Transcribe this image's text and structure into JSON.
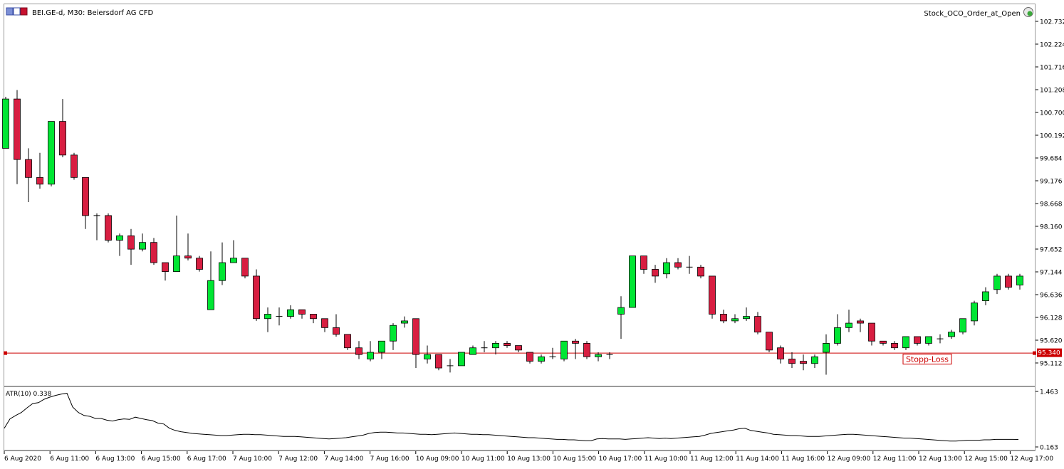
{
  "window": {
    "title": "BEI.GE-d, M30:  Beiersdorf AG CFD",
    "expert": "Stock_OCO_Order_at_Open"
  },
  "price_axis": {
    "labels": [
      "102.732",
      "102.224",
      "101.716",
      "101.208",
      "100.700",
      "100.192",
      "99.684",
      "99.176",
      "98.668",
      "98.160",
      "97.652",
      "97.144",
      "96.636",
      "96.128",
      "95.620",
      "95.112"
    ],
    "current_label": "95.340"
  },
  "atr_axis": {
    "labels": [
      "1.463",
      "0.163"
    ]
  },
  "time_axis": {
    "labels": [
      "6 Aug 2020",
      "6 Aug 11:00",
      "6 Aug 13:00",
      "6 Aug 15:00",
      "6 Aug 17:00",
      "7 Aug 10:00",
      "7 Aug 12:00",
      "7 Aug 14:00",
      "7 Aug 16:00",
      "10 Aug 09:00",
      "10 Aug 11:00",
      "10 Aug 13:00",
      "10 Aug 15:00",
      "10 Aug 17:00",
      "11 Aug 10:00",
      "11 Aug 12:00",
      "11 Aug 14:00",
      "11 Aug 16:00",
      "12 Aug 09:00",
      "12 Aug 11:00",
      "12 Aug 13:00",
      "12 Aug 15:00",
      "12 Aug 17:00"
    ]
  },
  "stop_loss": {
    "label": "Stopp-Loss",
    "price": 95.34
  },
  "atr_indicator": {
    "label": "ATR(10) 0.338"
  },
  "colors": {
    "bull": "#00e633",
    "bear": "#d81e41",
    "stop_line": "#cc0000",
    "atr_line": "#000000"
  },
  "chart_data": {
    "type": "candlestick",
    "symbol": "BEI.GE-d",
    "timeframe": "M30",
    "ylim": [
      94.9,
      103.0
    ],
    "candles": [
      {
        "o": 99.9,
        "h": 101.05,
        "l": 99.9,
        "c": 101.0
      },
      {
        "o": 101.0,
        "h": 101.2,
        "l": 99.1,
        "c": 99.65
      },
      {
        "o": 99.65,
        "h": 99.9,
        "l": 98.7,
        "c": 99.25
      },
      {
        "o": 99.25,
        "h": 99.8,
        "l": 99.0,
        "c": 99.1
      },
      {
        "o": 99.1,
        "h": 100.5,
        "l": 99.05,
        "c": 100.5
      },
      {
        "o": 100.5,
        "h": 101.0,
        "l": 99.7,
        "c": 99.75
      },
      {
        "o": 99.75,
        "h": 99.8,
        "l": 99.2,
        "c": 99.25
      },
      {
        "o": 99.25,
        "h": 99.25,
        "l": 98.1,
        "c": 98.4
      },
      {
        "o": 98.4,
        "h": 98.45,
        "l": 97.85,
        "c": 98.4
      },
      {
        "o": 98.4,
        "h": 98.45,
        "l": 97.8,
        "c": 97.85
      },
      {
        "o": 97.85,
        "h": 98.0,
        "l": 97.5,
        "c": 97.95
      },
      {
        "o": 97.95,
        "h": 98.1,
        "l": 97.3,
        "c": 97.65
      },
      {
        "o": 97.65,
        "h": 98.0,
        "l": 97.6,
        "c": 97.8
      },
      {
        "o": 97.8,
        "h": 97.9,
        "l": 97.3,
        "c": 97.35
      },
      {
        "o": 97.35,
        "h": 97.35,
        "l": 96.95,
        "c": 97.15
      },
      {
        "o": 97.15,
        "h": 98.4,
        "l": 97.15,
        "c": 97.5
      },
      {
        "o": 97.5,
        "h": 98.0,
        "l": 97.4,
        "c": 97.45
      },
      {
        "o": 97.45,
        "h": 97.5,
        "l": 97.15,
        "c": 97.2
      },
      {
        "o": 96.3,
        "h": 97.6,
        "l": 96.3,
        "c": 96.95
      },
      {
        "o": 96.95,
        "h": 97.8,
        "l": 96.85,
        "c": 97.35
      },
      {
        "o": 97.35,
        "h": 97.85,
        "l": 97.35,
        "c": 97.45
      },
      {
        "o": 97.45,
        "h": 97.45,
        "l": 97.0,
        "c": 97.05
      },
      {
        "o": 97.05,
        "h": 97.2,
        "l": 96.05,
        "c": 96.1
      },
      {
        "o": 96.1,
        "h": 96.35,
        "l": 95.8,
        "c": 96.2
      },
      {
        "o": 96.15,
        "h": 96.35,
        "l": 95.95,
        "c": 96.15
      },
      {
        "o": 96.15,
        "h": 96.4,
        "l": 96.1,
        "c": 96.3
      },
      {
        "o": 96.3,
        "h": 96.3,
        "l": 96.1,
        "c": 96.2
      },
      {
        "o": 96.2,
        "h": 96.2,
        "l": 96.0,
        "c": 96.1
      },
      {
        "o": 96.1,
        "h": 96.1,
        "l": 95.8,
        "c": 95.9
      },
      {
        "o": 95.9,
        "h": 96.2,
        "l": 95.7,
        "c": 95.75
      },
      {
        "o": 95.75,
        "h": 95.75,
        "l": 95.4,
        "c": 95.45
      },
      {
        "o": 95.45,
        "h": 95.6,
        "l": 95.2,
        "c": 95.3
      },
      {
        "o": 95.2,
        "h": 95.6,
        "l": 95.15,
        "c": 95.35
      },
      {
        "o": 95.35,
        "h": 95.6,
        "l": 95.2,
        "c": 95.6
      },
      {
        "o": 95.6,
        "h": 96.0,
        "l": 95.4,
        "c": 95.95
      },
      {
        "o": 96.0,
        "h": 96.15,
        "l": 95.9,
        "c": 96.05
      },
      {
        "o": 96.1,
        "h": 96.1,
        "l": 95.0,
        "c": 95.3
      },
      {
        "o": 95.2,
        "h": 95.5,
        "l": 95.1,
        "c": 95.3
      },
      {
        "o": 95.3,
        "h": 95.3,
        "l": 94.95,
        "c": 95.0
      },
      {
        "o": 95.05,
        "h": 95.2,
        "l": 94.9,
        "c": 95.05
      },
      {
        "o": 95.05,
        "h": 95.35,
        "l": 95.05,
        "c": 95.35
      },
      {
        "o": 95.3,
        "h": 95.5,
        "l": 95.3,
        "c": 95.45
      },
      {
        "o": 95.45,
        "h": 95.6,
        "l": 95.35,
        "c": 95.45
      },
      {
        "o": 95.45,
        "h": 95.6,
        "l": 95.3,
        "c": 95.55
      },
      {
        "o": 95.55,
        "h": 95.6,
        "l": 95.45,
        "c": 95.5
      },
      {
        "o": 95.5,
        "h": 95.5,
        "l": 95.35,
        "c": 95.4
      },
      {
        "o": 95.35,
        "h": 95.35,
        "l": 95.1,
        "c": 95.15
      },
      {
        "o": 95.15,
        "h": 95.3,
        "l": 95.1,
        "c": 95.25
      },
      {
        "o": 95.25,
        "h": 95.45,
        "l": 95.2,
        "c": 95.25
      },
      {
        "o": 95.2,
        "h": 95.6,
        "l": 95.15,
        "c": 95.6
      },
      {
        "o": 95.6,
        "h": 95.65,
        "l": 95.2,
        "c": 95.55
      },
      {
        "o": 95.55,
        "h": 95.6,
        "l": 95.2,
        "c": 95.25
      },
      {
        "o": 95.25,
        "h": 95.35,
        "l": 95.15,
        "c": 95.3
      },
      {
        "o": 95.3,
        "h": 95.35,
        "l": 95.2,
        "c": 95.3
      },
      {
        "o": 96.2,
        "h": 96.6,
        "l": 95.65,
        "c": 96.35
      },
      {
        "o": 96.35,
        "h": 97.5,
        "l": 96.35,
        "c": 97.5
      },
      {
        "o": 97.5,
        "h": 97.5,
        "l": 97.1,
        "c": 97.2
      },
      {
        "o": 97.2,
        "h": 97.3,
        "l": 96.9,
        "c": 97.05
      },
      {
        "o": 97.1,
        "h": 97.45,
        "l": 97.0,
        "c": 97.35
      },
      {
        "o": 97.35,
        "h": 97.45,
        "l": 97.2,
        "c": 97.25
      },
      {
        "o": 97.25,
        "h": 97.5,
        "l": 97.1,
        "c": 97.25
      },
      {
        "o": 97.25,
        "h": 97.3,
        "l": 97.0,
        "c": 97.05
      },
      {
        "o": 97.05,
        "h": 97.05,
        "l": 96.1,
        "c": 96.2
      },
      {
        "o": 96.2,
        "h": 96.3,
        "l": 96.0,
        "c": 96.05
      },
      {
        "o": 96.05,
        "h": 96.2,
        "l": 96.0,
        "c": 96.1
      },
      {
        "o": 96.1,
        "h": 96.35,
        "l": 96.05,
        "c": 96.15
      },
      {
        "o": 96.15,
        "h": 96.25,
        "l": 95.75,
        "c": 95.8
      },
      {
        "o": 95.8,
        "h": 95.8,
        "l": 95.35,
        "c": 95.4
      },
      {
        "o": 95.45,
        "h": 95.5,
        "l": 95.1,
        "c": 95.2
      },
      {
        "o": 95.2,
        "h": 95.35,
        "l": 95.0,
        "c": 95.1
      },
      {
        "o": 95.15,
        "h": 95.3,
        "l": 94.95,
        "c": 95.1
      },
      {
        "o": 95.1,
        "h": 95.3,
        "l": 95.0,
        "c": 95.25
      },
      {
        "o": 95.35,
        "h": 95.75,
        "l": 94.85,
        "c": 95.55
      },
      {
        "o": 95.55,
        "h": 96.2,
        "l": 95.5,
        "c": 95.9
      },
      {
        "o": 95.9,
        "h": 96.3,
        "l": 95.8,
        "c": 96.0
      },
      {
        "o": 96.05,
        "h": 96.1,
        "l": 95.8,
        "c": 96.0
      },
      {
        "o": 96.0,
        "h": 96.0,
        "l": 95.5,
        "c": 95.6
      },
      {
        "o": 95.6,
        "h": 95.6,
        "l": 95.5,
        "c": 95.55
      },
      {
        "o": 95.55,
        "h": 95.6,
        "l": 95.4,
        "c": 95.45
      },
      {
        "o": 95.45,
        "h": 95.7,
        "l": 95.4,
        "c": 95.7
      },
      {
        "o": 95.7,
        "h": 95.7,
        "l": 95.5,
        "c": 95.55
      },
      {
        "o": 95.55,
        "h": 95.7,
        "l": 95.5,
        "c": 95.7
      },
      {
        "o": 95.65,
        "h": 95.75,
        "l": 95.55,
        "c": 95.65
      },
      {
        "o": 95.7,
        "h": 95.85,
        "l": 95.65,
        "c": 95.8
      },
      {
        "o": 95.8,
        "h": 96.1,
        "l": 95.75,
        "c": 96.1
      },
      {
        "o": 96.05,
        "h": 96.5,
        "l": 95.95,
        "c": 96.45
      },
      {
        "o": 96.5,
        "h": 96.8,
        "l": 96.4,
        "c": 96.7
      },
      {
        "o": 96.75,
        "h": 97.1,
        "l": 96.65,
        "c": 97.05
      },
      {
        "o": 97.05,
        "h": 97.1,
        "l": 96.75,
        "c": 96.8
      },
      {
        "o": 96.85,
        "h": 97.1,
        "l": 96.75,
        "c": 97.05
      }
    ],
    "atr": {
      "name": "ATR(10)",
      "last": 0.338,
      "ylim": [
        0.163,
        1.463
      ],
      "values": [
        0.6,
        0.82,
        0.9,
        0.97,
        1.08,
        1.18,
        1.2,
        1.28,
        1.33,
        1.37,
        1.4,
        1.42,
        1.1,
        0.97,
        0.9,
        0.88,
        0.83,
        0.83,
        0.79,
        0.77,
        0.8,
        0.82,
        0.81,
        0.86,
        0.83,
        0.8,
        0.78,
        0.72,
        0.7,
        0.6,
        0.55,
        0.52,
        0.5,
        0.48,
        0.47,
        0.46,
        0.45,
        0.44,
        0.43,
        0.43,
        0.44,
        0.45,
        0.46,
        0.46,
        0.45,
        0.45,
        0.44,
        0.43,
        0.42,
        0.41,
        0.41,
        0.41,
        0.4,
        0.39,
        0.38,
        0.37,
        0.36,
        0.35,
        0.36,
        0.37,
        0.38,
        0.4,
        0.42,
        0.44,
        0.48,
        0.5,
        0.51,
        0.51,
        0.5,
        0.49,
        0.49,
        0.48,
        0.47,
        0.46,
        0.46,
        0.45,
        0.46,
        0.47,
        0.48,
        0.49,
        0.48,
        0.47,
        0.46,
        0.46,
        0.45,
        0.45,
        0.44,
        0.43,
        0.42,
        0.41,
        0.4,
        0.39,
        0.38,
        0.38,
        0.37,
        0.36,
        0.35,
        0.34,
        0.34,
        0.33,
        0.33,
        0.32,
        0.31,
        0.31,
        0.35,
        0.36,
        0.35,
        0.35,
        0.35,
        0.34,
        0.35,
        0.36,
        0.37,
        0.38,
        0.37,
        0.36,
        0.37,
        0.36,
        0.37,
        0.38,
        0.39,
        0.4,
        0.41,
        0.44,
        0.48,
        0.5,
        0.52,
        0.54,
        0.56,
        0.59,
        0.6,
        0.55,
        0.53,
        0.51,
        0.49,
        0.46,
        0.45,
        0.44,
        0.43,
        0.43,
        0.42,
        0.41,
        0.41,
        0.41,
        0.42,
        0.43,
        0.44,
        0.45,
        0.46,
        0.46,
        0.45,
        0.44,
        0.43,
        0.42,
        0.41,
        0.4,
        0.39,
        0.38,
        0.37,
        0.37,
        0.36,
        0.35,
        0.34,
        0.33,
        0.32,
        0.31,
        0.3,
        0.3,
        0.31,
        0.32,
        0.32,
        0.32,
        0.33,
        0.33,
        0.34,
        0.34,
        0.34,
        0.34,
        0.338
      ]
    }
  }
}
